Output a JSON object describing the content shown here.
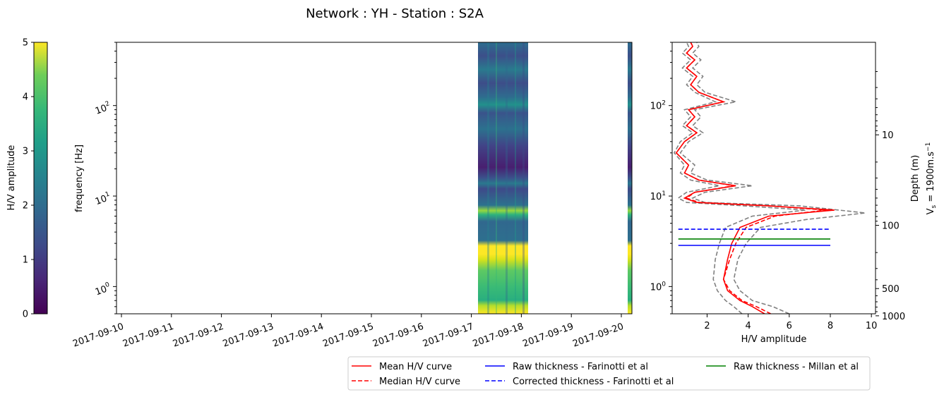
{
  "figure": {
    "title": "Network : YH - Station : S2A"
  },
  "colorbar": {
    "label": "H/V amplitude",
    "range": [
      0,
      5
    ],
    "ticks": [
      "0",
      "1",
      "2",
      "3",
      "4",
      "5"
    ],
    "colormap": "viridis"
  },
  "spectrogram": {
    "ylabel": "frequency [Hz]",
    "yscale": "log",
    "ylim_hz": [
      0.5,
      500
    ],
    "ytick_labels": [
      "10^0",
      "10^1",
      "10^2"
    ],
    "xtick_labels": [
      "2017-09-10",
      "2017-09-11",
      "2017-09-12",
      "2017-09-13",
      "2017-09-14",
      "2017-09-15",
      "2017-09-16",
      "2017-09-17",
      "2017-09-18",
      "2017-09-19",
      "2017-09-20"
    ]
  },
  "hv_panel": {
    "xlabel": "H/V amplitude",
    "xticks": [
      "2",
      "4",
      "6",
      "8",
      "10"
    ],
    "ytick_labels": [
      "10^0",
      "10^1",
      "10^2"
    ],
    "right_ylabel_line1": "Depth (m)",
    "right_ylabel_line2": "V",
    "right_ylabel_sub": "s",
    "right_ylabel_rest": " = 1900m.s",
    "right_ylabel_sup": "−1",
    "depth_ticks": [
      "10",
      "100",
      "500",
      "1000"
    ]
  },
  "legend": {
    "items": [
      {
        "label": "Mean H/V curve",
        "color": "#ff0000",
        "style": "solid"
      },
      {
        "label": "Median H/V curve",
        "color": "#ff0000",
        "style": "dashed"
      },
      {
        "label": "Raw thickness - Farinotti et al",
        "color": "#0000ff",
        "style": "solid"
      },
      {
        "label": "Corrected thickness - Farinotti et al",
        "color": "#0000ff",
        "style": "dashed"
      },
      {
        "label": "Raw thickness - Millan et al",
        "color": "#008000",
        "style": "solid"
      }
    ]
  },
  "chart_data": [
    {
      "type": "heatmap",
      "xlabel": "",
      "ylabel": "frequency [Hz]",
      "x_range": [
        "2017-09-10",
        "2017-09-20"
      ],
      "y_range_hz": [
        0.5,
        500
      ],
      "data_blocks": [
        {
          "start": "2017-09-17",
          "end": "2017-09-18"
        },
        {
          "start": "2017-09-20",
          "end": "2017-09-20"
        }
      ],
      "value_range": [
        0,
        5
      ]
    },
    {
      "type": "line",
      "xlabel": "H/V amplitude",
      "ylabel": "",
      "xlim": [
        0.3,
        10.2
      ],
      "ylim_hz": [
        0.5,
        500
      ],
      "mean_curve": {
        "name": "Mean H/V curve",
        "points": [
          [
            4.8,
            0.5
          ],
          [
            4.2,
            0.6
          ],
          [
            3.6,
            0.7
          ],
          [
            3.0,
            0.9
          ],
          [
            2.8,
            1.2
          ],
          [
            3.0,
            2.0
          ],
          [
            3.2,
            3.0
          ],
          [
            3.6,
            4.5
          ],
          [
            5.0,
            6.0
          ],
          [
            8.2,
            7.0
          ],
          [
            5.0,
            7.8
          ],
          [
            1.5,
            8.5
          ],
          [
            0.9,
            9.5
          ],
          [
            1.4,
            11
          ],
          [
            3.4,
            13
          ],
          [
            1.6,
            15
          ],
          [
            0.9,
            18
          ],
          [
            1.1,
            22
          ],
          [
            0.5,
            30
          ],
          [
            0.9,
            40
          ],
          [
            1.5,
            50
          ],
          [
            1.0,
            60
          ],
          [
            1.4,
            75
          ],
          [
            1.1,
            90
          ],
          [
            2.8,
            110
          ],
          [
            1.6,
            140
          ],
          [
            1.2,
            170
          ],
          [
            1.5,
            210
          ],
          [
            1.0,
            260
          ],
          [
            1.4,
            320
          ],
          [
            1.0,
            380
          ],
          [
            1.3,
            450
          ],
          [
            1.2,
            500
          ]
        ]
      },
      "median_curve": {
        "name": "Median H/V curve",
        "points": [
          [
            5.1,
            0.5
          ],
          [
            4.4,
            0.6
          ],
          [
            3.7,
            0.7
          ],
          [
            3.1,
            0.9
          ],
          [
            2.8,
            1.2
          ],
          [
            3.1,
            2.0
          ],
          [
            3.4,
            3.0
          ],
          [
            3.9,
            4.5
          ],
          [
            5.3,
            6.0
          ],
          [
            7.8,
            7.0
          ],
          [
            5.0,
            7.8
          ],
          [
            1.6,
            8.5
          ],
          [
            1.0,
            9.5
          ],
          [
            1.4,
            11
          ],
          [
            3.3,
            13
          ],
          [
            1.6,
            15
          ],
          [
            0.9,
            18
          ],
          [
            1.1,
            22
          ],
          [
            0.5,
            30
          ],
          [
            0.9,
            40
          ],
          [
            1.5,
            50
          ],
          [
            1.0,
            60
          ],
          [
            1.4,
            75
          ],
          [
            1.1,
            90
          ],
          [
            2.8,
            110
          ],
          [
            1.6,
            140
          ],
          [
            1.2,
            170
          ],
          [
            1.5,
            210
          ],
          [
            1.0,
            260
          ],
          [
            1.4,
            320
          ],
          [
            1.0,
            380
          ],
          [
            1.3,
            450
          ],
          [
            1.2,
            500
          ]
        ]
      },
      "lower_curve": {
        "points": [
          [
            3.7,
            0.5
          ],
          [
            3.3,
            0.6
          ],
          [
            2.9,
            0.7
          ],
          [
            2.5,
            0.9
          ],
          [
            2.3,
            1.2
          ],
          [
            2.4,
            2.0
          ],
          [
            2.6,
            3.0
          ],
          [
            2.9,
            4.5
          ],
          [
            4.2,
            6.0
          ],
          [
            6.8,
            7.0
          ],
          [
            3.8,
            7.8
          ],
          [
            1.0,
            8.5
          ],
          [
            0.6,
            9.5
          ],
          [
            1.0,
            11
          ],
          [
            2.6,
            13
          ],
          [
            1.2,
            15
          ],
          [
            0.7,
            18
          ],
          [
            0.9,
            22
          ],
          [
            0.4,
            30
          ],
          [
            0.7,
            40
          ],
          [
            1.3,
            50
          ],
          [
            0.8,
            60
          ],
          [
            1.2,
            75
          ],
          [
            0.9,
            90
          ],
          [
            2.4,
            110
          ],
          [
            1.4,
            140
          ],
          [
            1.0,
            170
          ],
          [
            1.3,
            210
          ],
          [
            0.8,
            260
          ],
          [
            1.2,
            320
          ],
          [
            0.8,
            380
          ],
          [
            1.1,
            450
          ],
          [
            1.0,
            500
          ]
        ]
      },
      "upper_curve": {
        "points": [
          [
            6.0,
            0.5
          ],
          [
            5.2,
            0.6
          ],
          [
            4.2,
            0.7
          ],
          [
            3.6,
            0.9
          ],
          [
            3.3,
            1.2
          ],
          [
            3.5,
            2.0
          ],
          [
            3.9,
            3.0
          ],
          [
            4.6,
            4.5
          ],
          [
            6.8,
            5.5
          ],
          [
            9.7,
            6.5
          ],
          [
            6.5,
            7.8
          ],
          [
            1.9,
            8.5
          ],
          [
            1.3,
            9.5
          ],
          [
            1.9,
            11
          ],
          [
            4.2,
            13
          ],
          [
            2.0,
            15
          ],
          [
            1.2,
            18
          ],
          [
            1.4,
            22
          ],
          [
            0.7,
            30
          ],
          [
            1.1,
            40
          ],
          [
            1.8,
            50
          ],
          [
            1.3,
            60
          ],
          [
            1.7,
            75
          ],
          [
            1.4,
            90
          ],
          [
            3.4,
            110
          ],
          [
            1.9,
            140
          ],
          [
            1.5,
            170
          ],
          [
            1.8,
            210
          ],
          [
            1.3,
            260
          ],
          [
            1.7,
            320
          ],
          [
            1.3,
            380
          ],
          [
            1.6,
            450
          ],
          [
            1.5,
            500
          ]
        ]
      },
      "hlines_hz": [
        {
          "name": "Raw thickness - Farinotti et al",
          "y": 2.85,
          "x_range": [
            0.6,
            8.0
          ]
        },
        {
          "name": "Corrected thickness - Farinotti et al",
          "y": 4.3,
          "x_range": [
            0.6,
            8.0
          ]
        },
        {
          "name": "Raw thickness - Millan et al",
          "y": 3.35,
          "x_range": [
            0.6,
            8.0
          ]
        }
      ]
    }
  ]
}
